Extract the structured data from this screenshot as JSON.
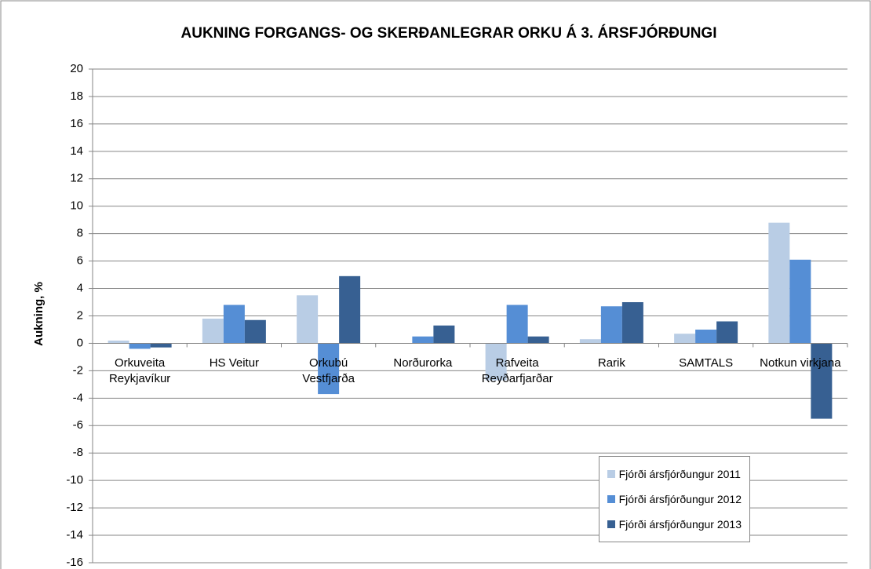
{
  "chart_data": {
    "type": "bar",
    "title": "AUKNING FORGANGS- OG SKERÐANLEGRAR ORKU Á 3. ÁRSFJÓRÐUNGI",
    "y_label": "Aukning, %",
    "categories": [
      "Orkuveita Reykjavíkur",
      "HS Veitur",
      "Orkubú Vestfjarða",
      "Norðurorka",
      "Rafveita Reyðarfjarðar",
      "Rarik",
      "SAMTALS",
      "Notkun virkjana"
    ],
    "series": [
      {
        "name": "Fjórði ársfjórðungur 2011",
        "color": "#b9cde5",
        "values": [
          0.2,
          1.8,
          3.5,
          0,
          -2.7,
          0.3,
          0.7,
          8.8
        ]
      },
      {
        "name": "Fjórði ársfjórðungur 2012",
        "color": "#558ed5",
        "values": [
          -0.4,
          2.8,
          -3.7,
          0.5,
          2.8,
          2.7,
          1.0,
          6.1
        ]
      },
      {
        "name": "Fjórði ársfjórðungur 2013",
        "color": "#376092",
        "values": [
          -0.3,
          1.7,
          4.9,
          1.3,
          0.5,
          3.0,
          1.6,
          -5.5
        ]
      }
    ],
    "ylim": [
      -16,
      20
    ],
    "yticks": [
      -16,
      -14,
      -12,
      -10,
      -8,
      -6,
      -4,
      -2,
      0,
      2,
      4,
      6,
      8,
      10,
      12,
      14,
      16,
      18,
      20
    ],
    "grid": true,
    "legend": "lower right"
  }
}
